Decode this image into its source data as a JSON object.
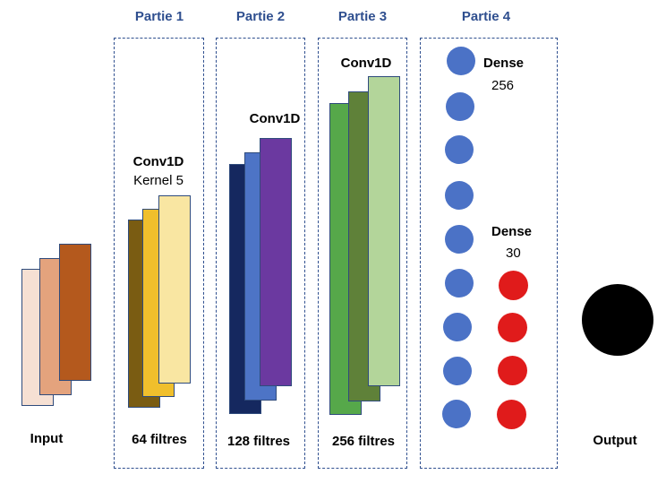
{
  "sections": {
    "partie1": "Partie 1",
    "partie2": "Partie 2",
    "partie3": "Partie 3",
    "partie4": "Partie 4"
  },
  "input": {
    "label": "Input"
  },
  "conv1": {
    "title": "Conv1D",
    "kernel": "Kernel 5",
    "filters": "64 filtres"
  },
  "conv2": {
    "title": "Conv1D",
    "filters": "128 filtres"
  },
  "conv3": {
    "title": "Conv1D",
    "filters": "256 filtres"
  },
  "dense1": {
    "title": "Dense",
    "units": "256"
  },
  "dense2": {
    "title": "Dense",
    "units": "30"
  },
  "output": {
    "label": "Output"
  },
  "colors": {
    "panel_border": "#2f4f8f",
    "title_text": "#2f4f8f",
    "input_layers": [
      "#f6e0d3",
      "#e4a37d",
      "#b4591d"
    ],
    "conv1_layers": [
      "#7a5c12",
      "#f0bf2c",
      "#f9e6a2"
    ],
    "conv2_layers": [
      "#15285f",
      "#4d74c6",
      "#6b39a0"
    ],
    "conv3_layers": [
      "#56a84a",
      "#5f8139",
      "#b3d59a"
    ],
    "dense_blue": "#4b72c6",
    "dense_red": "#e01b1b",
    "output_node": "#000000"
  }
}
